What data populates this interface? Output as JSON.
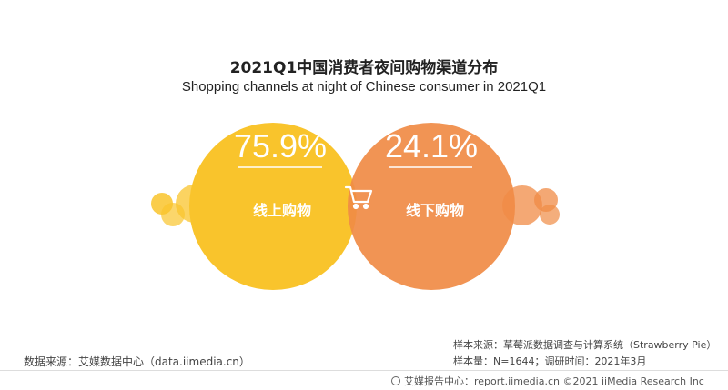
{
  "header": {
    "title_cn": "2021Q1中国消费者夜间购物渠道分布",
    "title_en": "Shopping channels at night of Chinese consumer in 2021Q1"
  },
  "chart_data": {
    "type": "pie",
    "categories": [
      "线上购物",
      "线下购物"
    ],
    "values": [
      75.9,
      24.1
    ],
    "value_labels": [
      "75.9%",
      "24.1%"
    ],
    "colors": [
      "#F9C42C",
      "#F08B45"
    ],
    "center_icon": "shopping-cart-icon"
  },
  "sources": {
    "data_source": "数据来源：艾媒数据中心（data.iimedia.cn）",
    "sample_source": "样本来源：草莓派数据调查与计算系统（Strawberry Pie）",
    "sample_size": "样本量：N=1644；调研时间：2021年3月"
  },
  "footer": {
    "text": "艾媒报告中心：report.iimedia.cn  ©2021  iiMedia Research  Inc"
  }
}
